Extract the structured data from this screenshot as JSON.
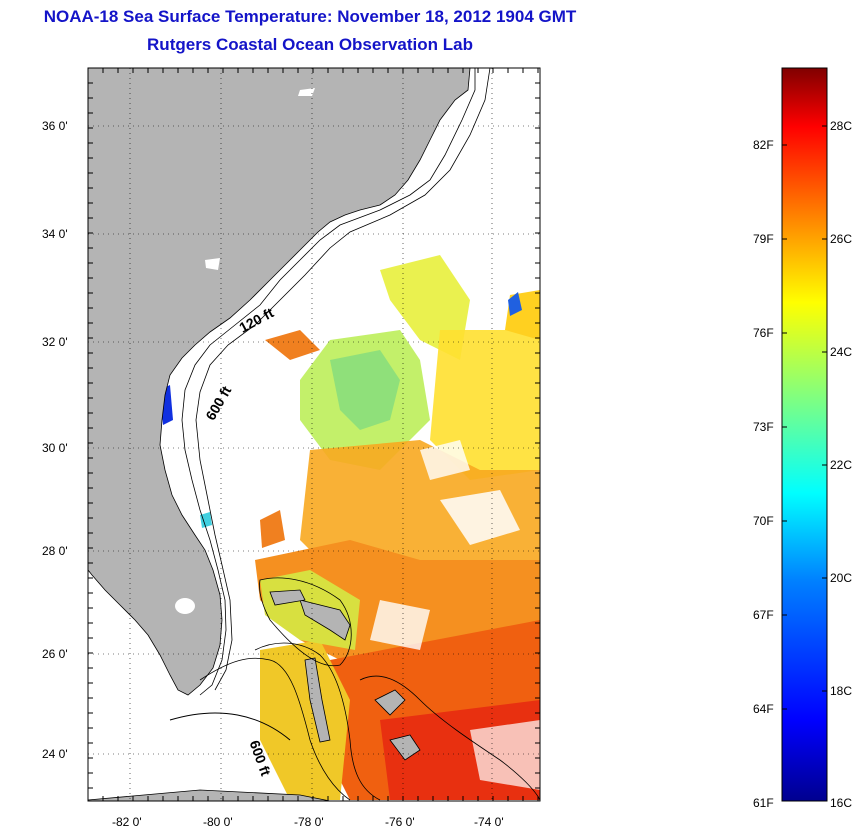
{
  "title": "NOAA-18 Sea Surface Temperature:  November 18, 2012 1904 GMT",
  "subtitle": "Rutgers Coastal Ocean Observation Lab",
  "lat_ticks": [
    "36 0'",
    "34 0'",
    "32 0'",
    "30 0'",
    "28 0'",
    "26 0'",
    "24 0'"
  ],
  "lon_ticks": [
    "-82 0'",
    "-80 0'",
    "-78 0'",
    "-76 0'",
    "-74 0'"
  ],
  "isobath_labels": [
    "120 ft",
    "600 ft",
    "600 ft"
  ],
  "colorbar": {
    "fahrenheit_ticks": [
      "82F",
      "79F",
      "76F",
      "73F",
      "70F",
      "67F",
      "64F",
      "61F"
    ],
    "celsius_ticks": [
      "28C",
      "26C",
      "24C",
      "22C",
      "20C",
      "18C",
      "16C"
    ],
    "colors": [
      "#00008f",
      "#0000ff",
      "#0080ff",
      "#00ffff",
      "#80ff80",
      "#ffff00",
      "#ff8000",
      "#ff0000",
      "#800000"
    ]
  },
  "colors": {
    "land": "#b4b4b4",
    "title": "#1414c8"
  }
}
